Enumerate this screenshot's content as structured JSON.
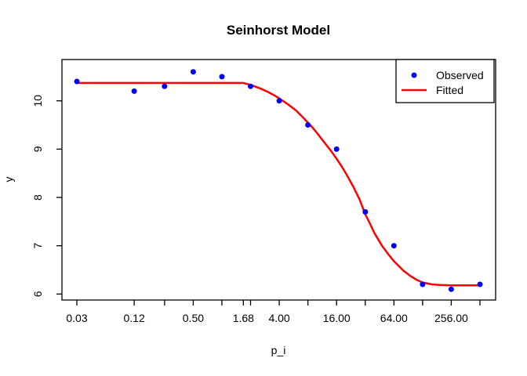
{
  "title": "Seinhorst Model",
  "xlabel": "p_i",
  "ylabel": "y",
  "legend": {
    "observed_label": "Observed",
    "fitted_label": "Fitted",
    "position": "topright"
  },
  "colors": {
    "observed": "#0000FF",
    "fitted": "#FF0000",
    "axis": "#000000",
    "background": "#FFFFFF"
  },
  "chart_data": {
    "type": "scatter",
    "title": "Seinhorst Model",
    "xlabel": "p_i",
    "ylabel": "y",
    "x_scale": "log",
    "x_range": [
      0.03,
      512
    ],
    "ylim": [
      5.9,
      10.8
    ],
    "grid": false,
    "legend_position": "topright",
    "x_ticks": [
      {
        "value": 0.03,
        "label": "0.03"
      },
      {
        "value": 0.12,
        "label": "0.12"
      },
      {
        "value": 0.25,
        "label": ""
      },
      {
        "value": 0.5,
        "label": "0.50"
      },
      {
        "value": 1,
        "label": ""
      },
      {
        "value": 1.68,
        "label": "1.68"
      },
      {
        "value": 2,
        "label": ""
      },
      {
        "value": 4,
        "label": "4.00"
      },
      {
        "value": 8,
        "label": ""
      },
      {
        "value": 16,
        "label": "16.00"
      },
      {
        "value": 32,
        "label": ""
      },
      {
        "value": 64,
        "label": "64.00"
      },
      {
        "value": 128,
        "label": ""
      },
      {
        "value": 256,
        "label": "256.00"
      },
      {
        "value": 512,
        "label": ""
      }
    ],
    "y_ticks": [
      {
        "value": 6,
        "label": "6"
      },
      {
        "value": 7,
        "label": "7"
      },
      {
        "value": 8,
        "label": "8"
      },
      {
        "value": 9,
        "label": "9"
      },
      {
        "value": 10,
        "label": "10"
      }
    ],
    "series": [
      {
        "name": "Observed",
        "type": "points",
        "color": "#0000FF",
        "marker": "filled-circle",
        "points": [
          [
            0.03,
            10.4
          ],
          [
            0.12,
            10.2
          ],
          [
            0.25,
            10.3
          ],
          [
            0.5,
            10.6
          ],
          [
            1,
            10.5
          ],
          [
            2,
            10.3
          ],
          [
            4,
            10.0
          ],
          [
            8,
            9.5
          ],
          [
            16,
            9.0
          ],
          [
            32,
            7.7
          ],
          [
            64,
            7.0
          ],
          [
            128,
            6.2
          ],
          [
            256,
            6.1
          ],
          [
            512,
            6.2
          ]
        ]
      },
      {
        "name": "Fitted",
        "type": "line",
        "color": "#FF0000",
        "model": "seinhorst (plateau 10.37 until T=1.68, asymptote 6.18)",
        "points": [
          [
            0.03,
            10.37
          ],
          [
            0.5,
            10.37
          ],
          [
            1,
            10.37
          ],
          [
            1.68,
            10.37
          ],
          [
            2,
            10.33
          ],
          [
            2.5,
            10.26
          ],
          [
            3,
            10.19
          ],
          [
            3.5,
            10.12
          ],
          [
            4,
            10.05
          ],
          [
            5,
            9.92
          ],
          [
            6,
            9.8
          ],
          [
            7,
            9.67
          ],
          [
            8,
            9.55
          ],
          [
            9,
            9.44
          ],
          [
            10,
            9.33
          ],
          [
            12,
            9.13
          ],
          [
            14,
            8.96
          ],
          [
            16,
            8.8
          ],
          [
            18,
            8.65
          ],
          [
            20,
            8.5
          ],
          [
            24,
            8.22
          ],
          [
            28,
            7.95
          ],
          [
            32,
            7.65
          ],
          [
            36,
            7.45
          ],
          [
            40,
            7.26
          ],
          [
            48,
            7.0
          ],
          [
            56,
            6.82
          ],
          [
            64,
            6.68
          ],
          [
            72,
            6.58
          ],
          [
            80,
            6.49
          ],
          [
            96,
            6.37
          ],
          [
            112,
            6.29
          ],
          [
            128,
            6.24
          ],
          [
            160,
            6.2
          ],
          [
            192,
            6.19
          ],
          [
            256,
            6.18
          ],
          [
            384,
            6.18
          ],
          [
            512,
            6.18
          ]
        ]
      }
    ]
  }
}
